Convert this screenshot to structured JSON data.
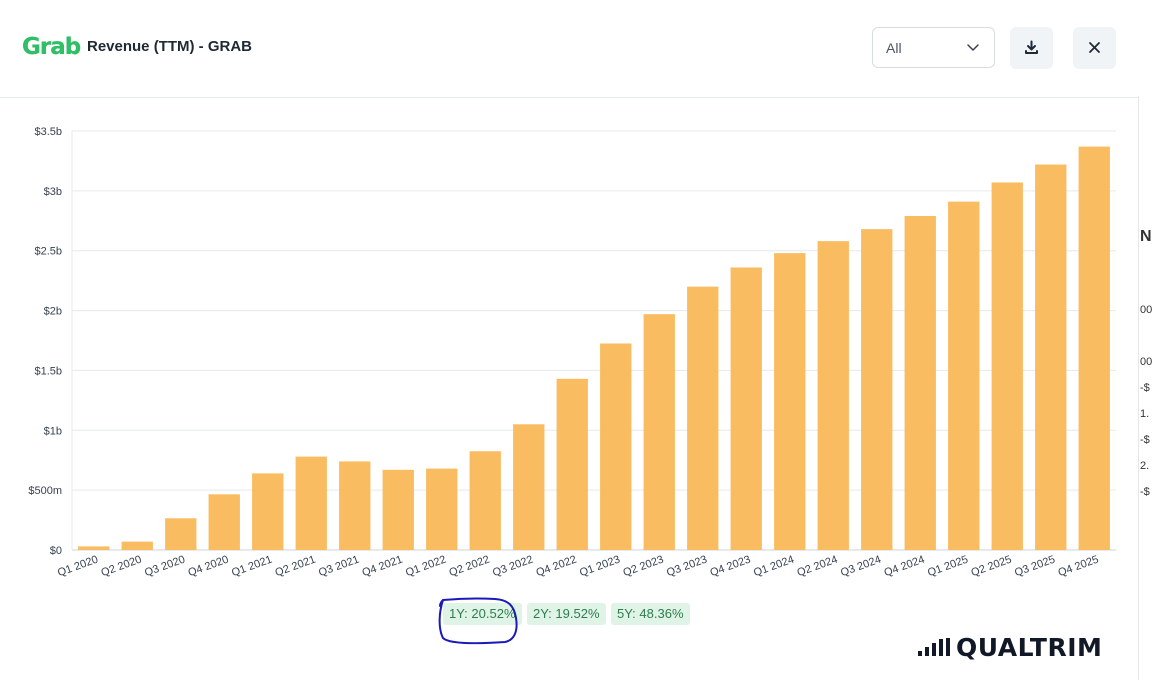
{
  "header": {
    "logo_text": "Grab",
    "title": "Revenue (TTM) - GRAB",
    "range_select": {
      "value": "All"
    },
    "download_icon": "download-icon",
    "close_icon": "close-icon"
  },
  "chart_data": {
    "type": "bar",
    "title": "",
    "xlabel": "",
    "ylabel": "",
    "ylim": [
      0,
      3500
    ],
    "y_unit": "millions USD",
    "y_ticks": [
      {
        "value": 0,
        "label": "$0"
      },
      {
        "value": 500,
        "label": "$500m"
      },
      {
        "value": 1000,
        "label": "$1b"
      },
      {
        "value": 1500,
        "label": "$1.5b"
      },
      {
        "value": 2000,
        "label": "$2b"
      },
      {
        "value": 2500,
        "label": "$2.5b"
      },
      {
        "value": 3000,
        "label": "$3b"
      },
      {
        "value": 3500,
        "label": "$3.5b"
      }
    ],
    "grid": true,
    "bar_color": "#f9bc60",
    "categories": [
      "Q1 2020",
      "Q2 2020",
      "Q3 2020",
      "Q4 2020",
      "Q1 2021",
      "Q2 2021",
      "Q3 2021",
      "Q4 2021",
      "Q1 2022",
      "Q2 2022",
      "Q3 2022",
      "Q4 2022",
      "Q1 2023",
      "Q2 2023",
      "Q3 2023",
      "Q4 2023",
      "Q1 2024",
      "Q2 2024",
      "Q3 2024",
      "Q4 2024",
      "Q1 2025",
      "Q2 2025",
      "Q3 2025",
      "Q4 2025"
    ],
    "values": [
      30,
      70,
      265,
      465,
      640,
      780,
      740,
      670,
      680,
      825,
      1050,
      1430,
      1725,
      1970,
      2200,
      2360,
      2480,
      2580,
      2680,
      2790,
      2910,
      3070,
      3220,
      3370
    ]
  },
  "growth_badges": [
    {
      "label": "1Y: 20.52%"
    },
    {
      "label": "2Y: 19.52%"
    },
    {
      "label": "5Y: 48.36%"
    }
  ],
  "annotation": {
    "color": "#1a1ab8"
  },
  "brand": {
    "wordmark": "QUALTRIM"
  },
  "right_edge_fragments": [
    "N",
    "00",
    "00",
    "-$",
    "1.",
    "-$",
    "2.",
    "-$"
  ]
}
